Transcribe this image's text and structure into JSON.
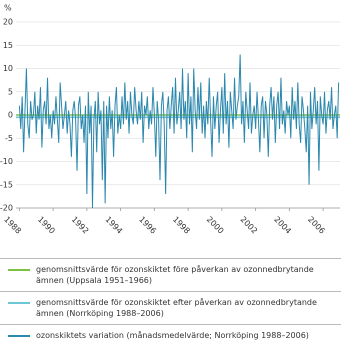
{
  "chart_data": {
    "type": "line",
    "y_label": "%",
    "xlim": [
      1987.8,
      2007.0
    ],
    "xticks": [
      1988,
      1990,
      1992,
      1994,
      1996,
      1998,
      2000,
      2002,
      2004,
      2006
    ],
    "ylim": [
      -20,
      20
    ],
    "yticks": [
      20,
      15,
      10,
      5,
      0,
      -5,
      -10,
      -15,
      -20
    ],
    "grid": true,
    "reference_lines": [
      {
        "name": "genomsnittsvärde för ozonskiktet före påverkan av ozonnedbrytande ämnen (Uppsala 1951–1966)",
        "color": "#7dc142",
        "value": 0
      },
      {
        "name": "genomsnittsvärde för ozonskiktet efter påverkan av ozonnedbrytande ämnen (Norrköping 1988–2006)",
        "color": "#6cc6d6",
        "value": -0.5
      }
    ],
    "x": [
      1988,
      1988.083,
      1988.167,
      1988.25,
      1988.333,
      1988.417,
      1988.5,
      1988.583,
      1988.667,
      1988.75,
      1988.833,
      1988.917,
      1989,
      1989.083,
      1989.167,
      1989.25,
      1989.333,
      1989.417,
      1989.5,
      1989.583,
      1989.667,
      1989.75,
      1989.833,
      1989.917,
      1990,
      1990.083,
      1990.167,
      1990.25,
      1990.333,
      1990.417,
      1990.5,
      1990.583,
      1990.667,
      1990.75,
      1990.833,
      1990.917,
      1991,
      1991.083,
      1991.167,
      1991.25,
      1991.333,
      1991.417,
      1991.5,
      1991.583,
      1991.667,
      1991.75,
      1991.833,
      1991.917,
      1992,
      1992.083,
      1992.167,
      1992.25,
      1992.333,
      1992.417,
      1992.5,
      1992.583,
      1992.667,
      1992.75,
      1992.833,
      1992.917,
      1993,
      1993.083,
      1993.167,
      1993.25,
      1993.333,
      1993.417,
      1993.5,
      1993.583,
      1993.667,
      1993.75,
      1993.833,
      1993.917,
      1994,
      1994.083,
      1994.167,
      1994.25,
      1994.333,
      1994.417,
      1994.5,
      1994.583,
      1994.667,
      1994.75,
      1994.833,
      1994.917,
      1995,
      1995.083,
      1995.167,
      1995.25,
      1995.333,
      1995.417,
      1995.5,
      1995.583,
      1995.667,
      1995.75,
      1995.833,
      1995.917,
      1996,
      1996.083,
      1996.167,
      1996.25,
      1996.333,
      1996.417,
      1996.5,
      1996.583,
      1996.667,
      1996.75,
      1996.833,
      1996.917,
      1997,
      1997.083,
      1997.167,
      1997.25,
      1997.333,
      1997.417,
      1997.5,
      1997.583,
      1997.667,
      1997.75,
      1997.833,
      1997.917,
      1998,
      1998.083,
      1998.167,
      1998.25,
      1998.333,
      1998.417,
      1998.5,
      1998.583,
      1998.667,
      1998.75,
      1998.833,
      1998.917,
      1999,
      1999.083,
      1999.167,
      1999.25,
      1999.333,
      1999.417,
      1999.5,
      1999.583,
      1999.667,
      1999.75,
      1999.833,
      1999.917,
      2000,
      2000.083,
      2000.167,
      2000.25,
      2000.333,
      2000.417,
      2000.5,
      2000.583,
      2000.667,
      2000.75,
      2000.833,
      2000.917,
      2001,
      2001.083,
      2001.167,
      2001.25,
      2001.333,
      2001.417,
      2001.5,
      2001.583,
      2001.667,
      2001.75,
      2001.833,
      2001.917,
      2002,
      2002.083,
      2002.167,
      2002.25,
      2002.333,
      2002.417,
      2002.5,
      2002.583,
      2002.667,
      2002.75,
      2002.833,
      2002.917,
      2003,
      2003.083,
      2003.167,
      2003.25,
      2003.333,
      2003.417,
      2003.5,
      2003.583,
      2003.667,
      2003.75,
      2003.833,
      2003.917,
      2004,
      2004.083,
      2004.167,
      2004.25,
      2004.333,
      2004.417,
      2004.5,
      2004.583,
      2004.667,
      2004.75,
      2004.833,
      2004.917,
      2005,
      2005.083,
      2005.167,
      2005.25,
      2005.333,
      2005.417,
      2005.5,
      2005.583,
      2005.667,
      2005.75,
      2005.833,
      2005.917,
      2006,
      2006.083,
      2006.167,
      2006.25,
      2006.333,
      2006.417,
      2006.5,
      2006.583,
      2006.667,
      2006.75,
      2006.833,
      2006.917
    ],
    "series": [
      {
        "name": "ozonskiktets variation (månadsmedelvärde; Norrköping 1988–2006)",
        "color": "#2b87ad",
        "values": [
          2,
          -3,
          4,
          -8,
          1,
          10,
          -2,
          -5,
          3,
          -1,
          0,
          5,
          -4,
          2,
          -1,
          6,
          -7,
          1,
          3,
          -2,
          8,
          -3,
          0,
          -5,
          1,
          -2,
          4,
          -1,
          -6,
          7,
          2,
          -3,
          0,
          3,
          -4,
          1,
          -2,
          -9,
          1,
          3,
          -1,
          -12,
          2,
          4,
          -3,
          0,
          -6,
          2,
          -17,
          5,
          -4,
          2,
          -20,
          -1,
          3,
          -8,
          5,
          -2,
          1,
          -14,
          3,
          -19,
          2,
          -5,
          4,
          -3,
          1,
          -9,
          2,
          6,
          -4,
          0,
          -3,
          4,
          -2,
          7,
          -1,
          3,
          -4,
          5,
          0,
          -2,
          6,
          1,
          -2,
          3,
          -1,
          5,
          -6,
          2,
          0,
          4,
          -3,
          1,
          -2,
          6,
          0,
          -9,
          3,
          -1,
          -14,
          2,
          5,
          -2,
          -17,
          1,
          4,
          -3,
          2,
          6,
          -4,
          8,
          -2,
          1,
          5,
          -3,
          10,
          -1,
          3,
          -5,
          9,
          -2,
          4,
          -8,
          10,
          1,
          -3,
          6,
          -1,
          7,
          -4,
          2,
          -5,
          3,
          -2,
          8,
          -1,
          -9,
          4,
          -3,
          2,
          5,
          -6,
          1,
          6,
          -4,
          9,
          -2,
          3,
          -7,
          5,
          1,
          -3,
          8,
          -1,
          2,
          4,
          13,
          -2,
          3,
          -6,
          5,
          1,
          -3,
          7,
          -4,
          0,
          2,
          -3,
          5,
          -1,
          -8,
          2,
          4,
          -5,
          3,
          0,
          -9,
          2,
          6,
          -1,
          4,
          -6,
          2,
          5,
          -3,
          8,
          -2,
          1,
          -4,
          3,
          0,
          2,
          -5,
          6,
          -1,
          3,
          -3,
          7,
          -2,
          -6,
          4,
          1,
          -3,
          -8,
          2,
          -15,
          5,
          -3,
          1,
          6,
          -2,
          3,
          -12,
          4,
          0,
          -2,
          5,
          -4,
          1,
          3,
          -1,
          6,
          -3,
          0,
          2,
          -5,
          7
        ]
      }
    ]
  }
}
